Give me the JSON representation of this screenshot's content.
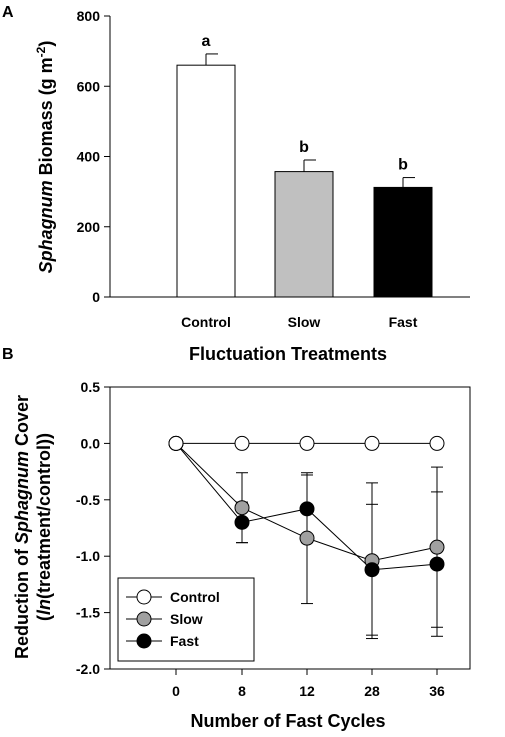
{
  "chart_data": [
    {
      "panel": "A",
      "type": "bar",
      "xlabel": "Fluctuation Treatments",
      "ylabel_italic": "Sphagnum",
      "ylabel_rest": " Biomass (g m",
      "ylabel_sup": "-2",
      "ylabel_close": ")",
      "ylim": [
        0,
        800
      ],
      "yticks": [
        "0",
        "200",
        "400",
        "600",
        "800"
      ],
      "categories": [
        "Control",
        "Slow",
        "Fast"
      ],
      "values": [
        660,
        357,
        312
      ],
      "errors": [
        32,
        33,
        28
      ],
      "letters": [
        "a",
        "b",
        "b"
      ],
      "colors": [
        "#ffffff",
        "#c0c0c0",
        "#000000"
      ]
    },
    {
      "panel": "B",
      "type": "line",
      "xlabel": "Number of Fast Cycles",
      "ylabel_line1_pre": "Reduction of ",
      "ylabel_line1_italic": "Sphagnum",
      "ylabel_line1_post": " Cover",
      "ylabel_line2_open": "(",
      "ylabel_line2_italic": "ln",
      "ylabel_line2_rest": "(treatment/control))",
      "ylim": [
        -2.0,
        0.5
      ],
      "yticks": [
        "0.5",
        "0.0",
        "-0.5",
        "-1.0",
        "-1.5",
        "-2.0"
      ],
      "x": [
        "0",
        "8",
        "12",
        "28",
        "36"
      ],
      "legend_position": "bottom-left",
      "series": [
        {
          "name": "Control",
          "color": "#ffffff",
          "values": [
            0,
            0,
            0,
            0,
            0
          ],
          "errors": [
            0,
            0,
            0,
            0,
            0
          ]
        },
        {
          "name": "Slow",
          "color": "#a0a0a0",
          "values": [
            0,
            -0.57,
            -0.84,
            -1.04,
            -0.92
          ],
          "errors": [
            0,
            0.31,
            0.58,
            0.69,
            0.71
          ]
        },
        {
          "name": "Fast",
          "color": "#000000",
          "values": [
            0,
            -0.7,
            -0.58,
            -1.12,
            -1.07
          ],
          "errors": [
            0,
            0.18,
            0.3,
            0.58,
            0.64
          ]
        }
      ]
    }
  ]
}
